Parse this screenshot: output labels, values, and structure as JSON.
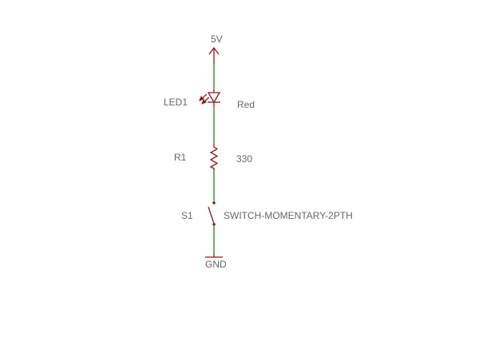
{
  "schematic": {
    "supply": {
      "label": "5V"
    },
    "led": {
      "designator": "LED1",
      "value": "Red"
    },
    "resistor": {
      "designator": "R1",
      "value": "330"
    },
    "switch": {
      "designator": "S1",
      "value": "SWITCH-MOMENTARY-2PTH"
    },
    "ground": {
      "label": "GND"
    }
  },
  "colors": {
    "wire": "#2e8b2e",
    "component": "#8b1a1a",
    "label_text": "#666666",
    "background": "#ffffff"
  }
}
